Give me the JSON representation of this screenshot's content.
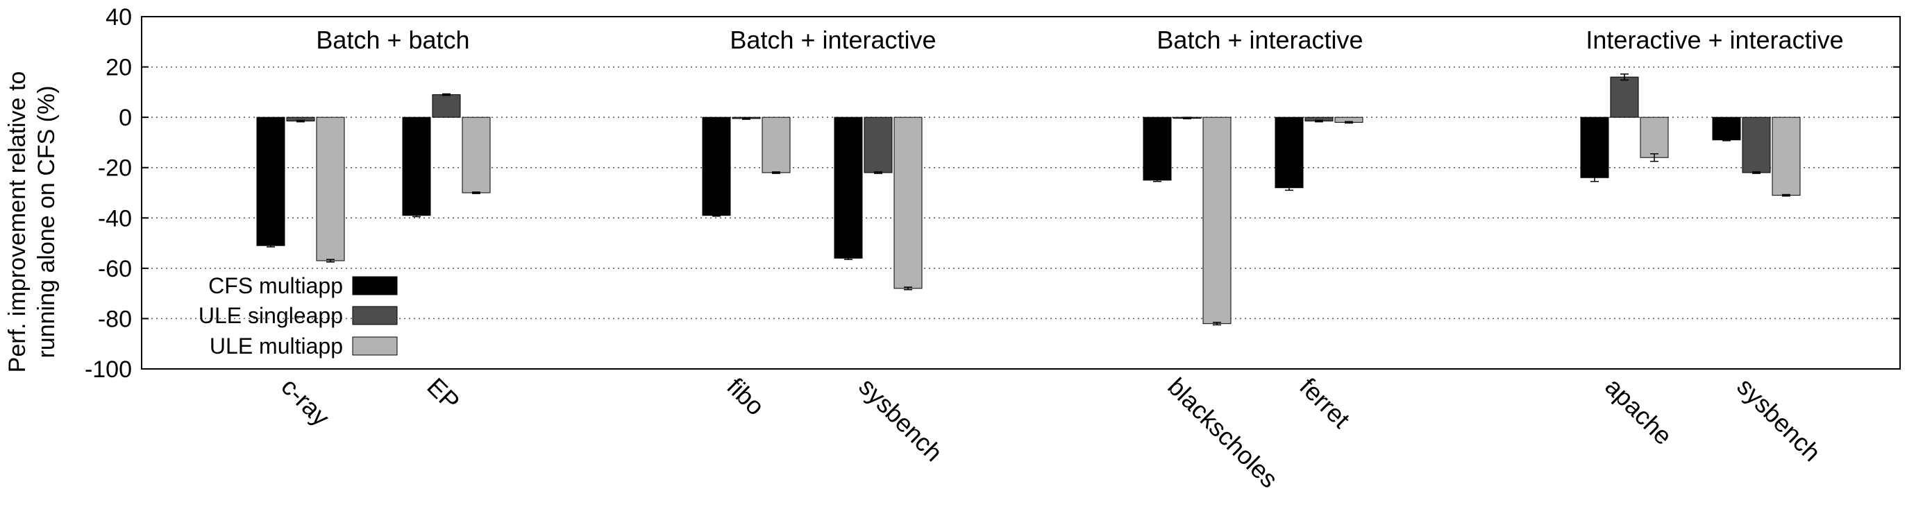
{
  "chart_data": {
    "type": "bar",
    "ylabel_lines": [
      "Perf. improvement relative to",
      "running alone on CFS (%)"
    ],
    "ylim": [
      -100,
      40
    ],
    "yticks": [
      40,
      20,
      0,
      -20,
      -40,
      -60,
      -80,
      -100
    ],
    "grid": "horizontal dotted",
    "legend_position": "bottom-left",
    "groups": [
      {
        "title": "Batch + batch",
        "categories": [
          "c-ray",
          "EP"
        ]
      },
      {
        "title": "Batch + interactive",
        "categories": [
          "fibo",
          "sysbench"
        ]
      },
      {
        "title": "Batch + interactive",
        "categories": [
          "blackscholes",
          "ferret"
        ]
      },
      {
        "title": "Interactive + interactive",
        "categories": [
          "apache",
          "sysbench"
        ]
      }
    ],
    "categories": [
      "c-ray",
      "EP",
      "fibo",
      "sysbench",
      "blackscholes",
      "ferret",
      "apache",
      "sysbench"
    ],
    "series": [
      {
        "name": "CFS multiapp",
        "color": "#000000",
        "values": [
          -51,
          -39,
          -39,
          -56,
          -25,
          -28,
          -24,
          -9
        ]
      },
      {
        "name": "ULE singleapp",
        "color": "#4d4d4d",
        "values": [
          -1.5,
          9,
          -0.5,
          -22,
          -0.3,
          -1.5,
          16,
          -22
        ]
      },
      {
        "name": "ULE multiapp",
        "color": "#b3b3b3",
        "values": [
          -57,
          -30,
          -22,
          -68,
          -82,
          -2,
          -16,
          -31
        ]
      }
    ],
    "error_bars": [
      [
        0.5,
        0.5,
        0.3,
        0.5,
        0.5,
        1,
        1.5,
        0.3
      ],
      [
        0.3,
        0.3,
        0.3,
        0.3,
        0.3,
        0.3,
        1.2,
        0.3
      ],
      [
        0.5,
        0.3,
        0.3,
        0.5,
        0.5,
        0.3,
        1.5,
        0.3
      ]
    ]
  }
}
